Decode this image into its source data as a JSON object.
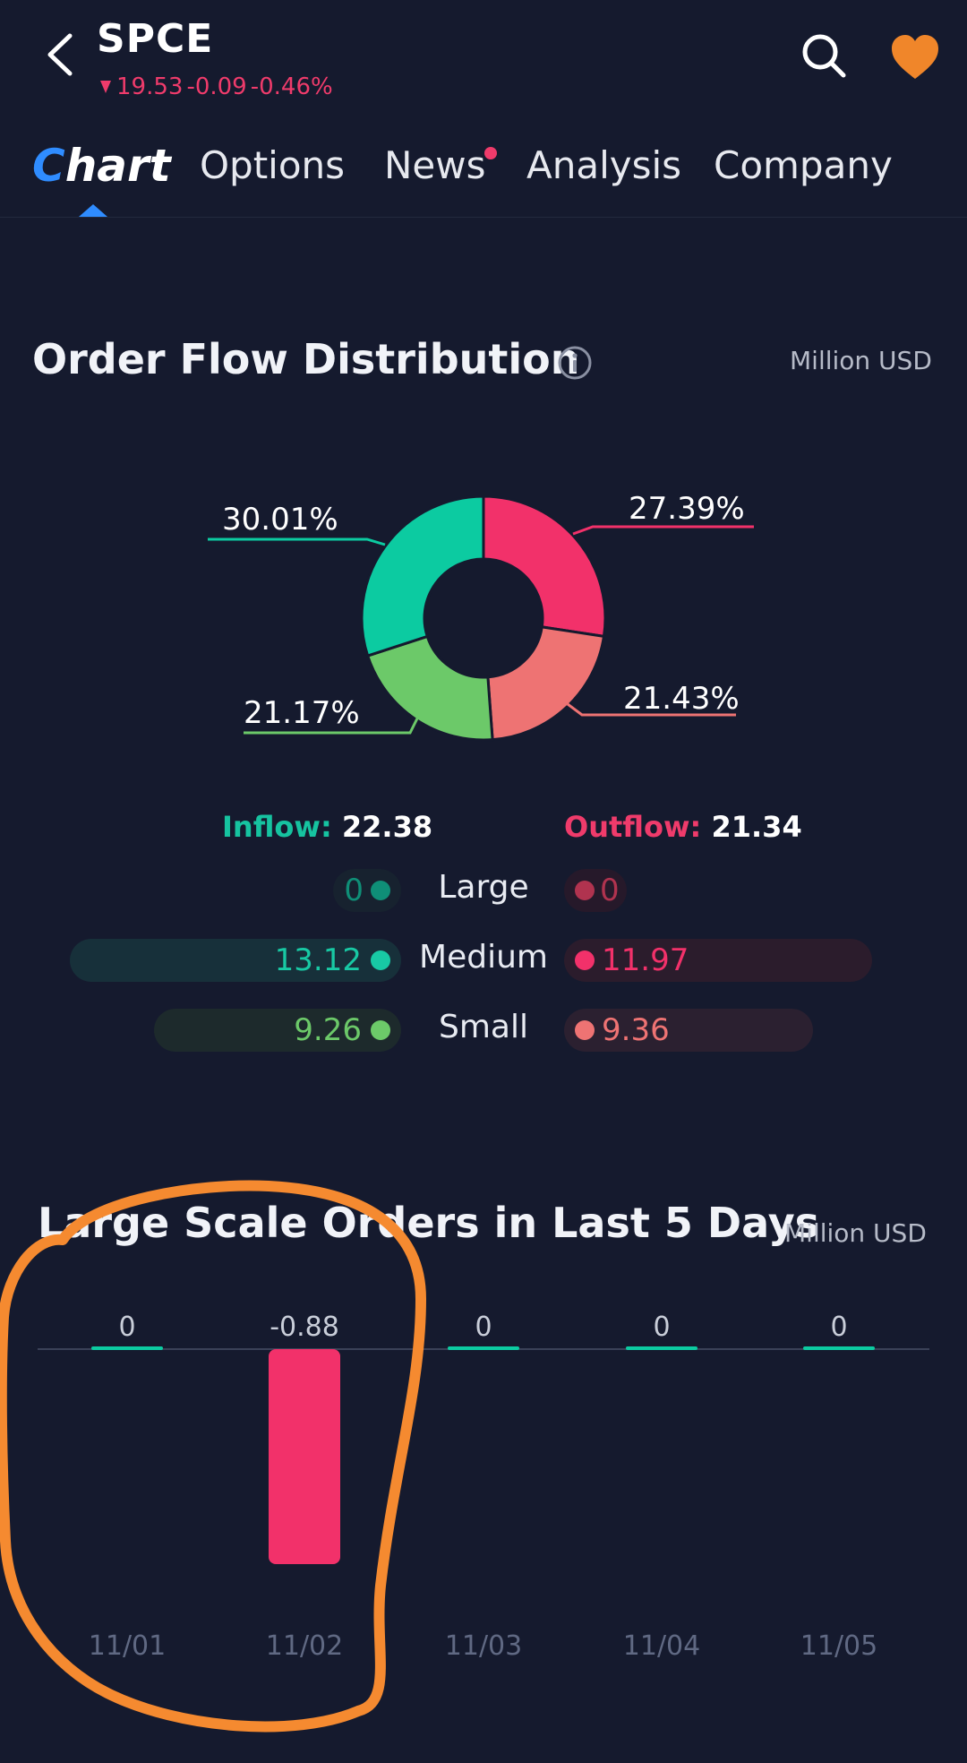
{
  "header": {
    "ticker": "SPCE",
    "price": "19.53",
    "change": "-0.09",
    "change_pct": "-0.46%",
    "direction_icon": "down-triangle-icon",
    "back_icon": "chevron-left-icon",
    "search_icon": "search-icon",
    "watchlist_icon": "heart-icon",
    "colors": {
      "negative": "#ef3b6b",
      "watchlist": "#f0862a",
      "accent": "#2f8cff"
    }
  },
  "tabs": [
    {
      "label_first": "C",
      "label_rest": "hart",
      "active": true
    },
    {
      "label": "Options"
    },
    {
      "label": "News",
      "badge": true
    },
    {
      "label": "Analysis"
    },
    {
      "label": "Company"
    }
  ],
  "order_flow": {
    "title": "Order Flow Distribution",
    "unit": "Million USD",
    "info_icon": "info-icon",
    "inflow_label": "Inflow:",
    "inflow_value": "22.38",
    "outflow_label": "Outflow:",
    "outflow_value": "21.34",
    "rows": [
      {
        "category": "Large",
        "inflow": "0",
        "outflow": "0"
      },
      {
        "category": "Medium",
        "inflow": "13.12",
        "outflow": "11.97"
      },
      {
        "category": "Small",
        "inflow": "9.26",
        "outflow": "9.36"
      }
    ]
  },
  "chart_data": [
    {
      "type": "pie",
      "donut": true,
      "slices": [
        {
          "label": "27.39%",
          "value": 27.39,
          "color": "#f2316a"
        },
        {
          "label": "21.43%",
          "value": 21.43,
          "color": "#ee7373"
        },
        {
          "label": "21.17%",
          "value": 21.17,
          "color": "#6cc969"
        },
        {
          "label": "30.01%",
          "value": 30.01,
          "color": "#0ccba1"
        }
      ]
    },
    {
      "type": "bar",
      "title": "Large Scale Orders in Last 5 Days",
      "unit": "Million USD",
      "categories": [
        "11/01",
        "11/02",
        "11/03",
        "11/04",
        "11/05"
      ],
      "values": [
        0,
        -0.88,
        0,
        0,
        0
      ],
      "value_labels": [
        "0",
        "-0.88",
        "0",
        "0",
        "0"
      ],
      "ylim": [
        -0.88,
        0
      ],
      "positive_color": "#0ccba1",
      "negative_color": "#f2316a"
    }
  ]
}
